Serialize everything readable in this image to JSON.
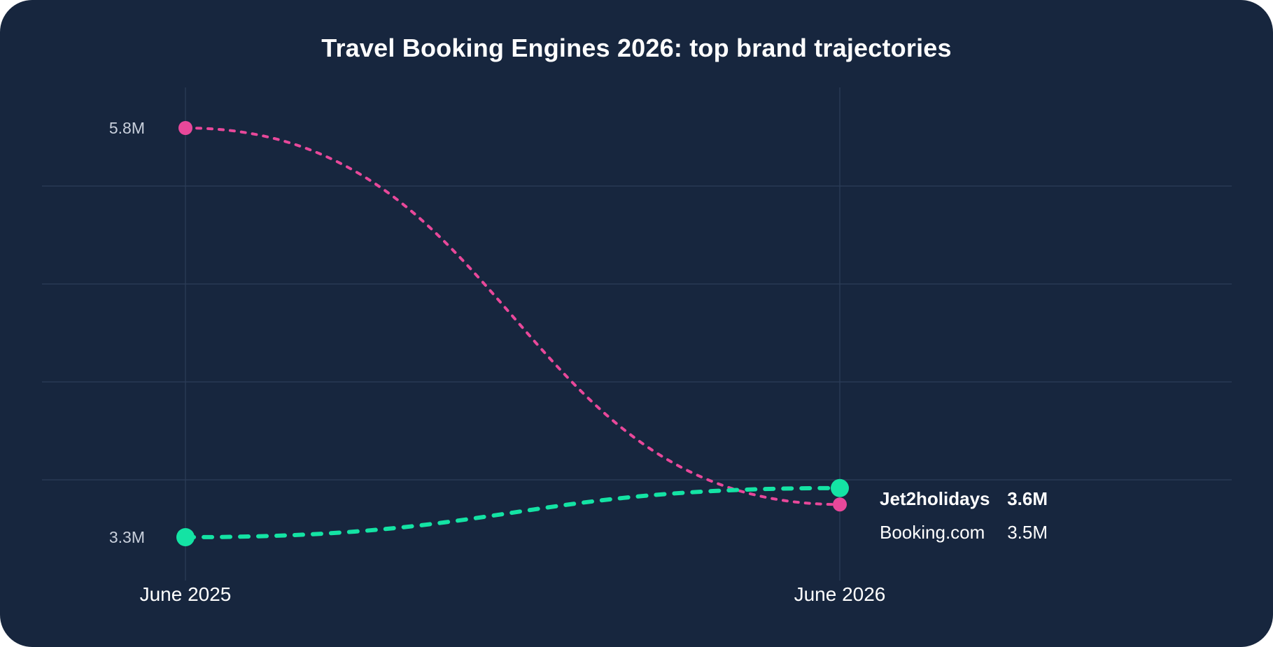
{
  "chart_data": {
    "type": "line",
    "title": "Travel Booking Engines 2026: top brand trajectories",
    "x": [
      "June 2025",
      "June 2026"
    ],
    "series": [
      {
        "name": "Booking.com",
        "values": [
          5.8,
          3.5
        ],
        "value_labels": [
          "5.8M",
          "3.5M"
        ],
        "color": "#e8489a",
        "style": "dotted"
      },
      {
        "name": "Jet2holidays",
        "values": [
          3.3,
          3.6
        ],
        "value_labels": [
          "3.3M",
          "3.6M"
        ],
        "color": "#14e3a4",
        "style": "dashed",
        "highlighted": true
      }
    ],
    "y_tick_labels": [
      "5.8M",
      "3.3M"
    ],
    "ylim": [
      3.05,
      6.15
    ],
    "grid": true,
    "legend": "direct labels at line ends"
  }
}
